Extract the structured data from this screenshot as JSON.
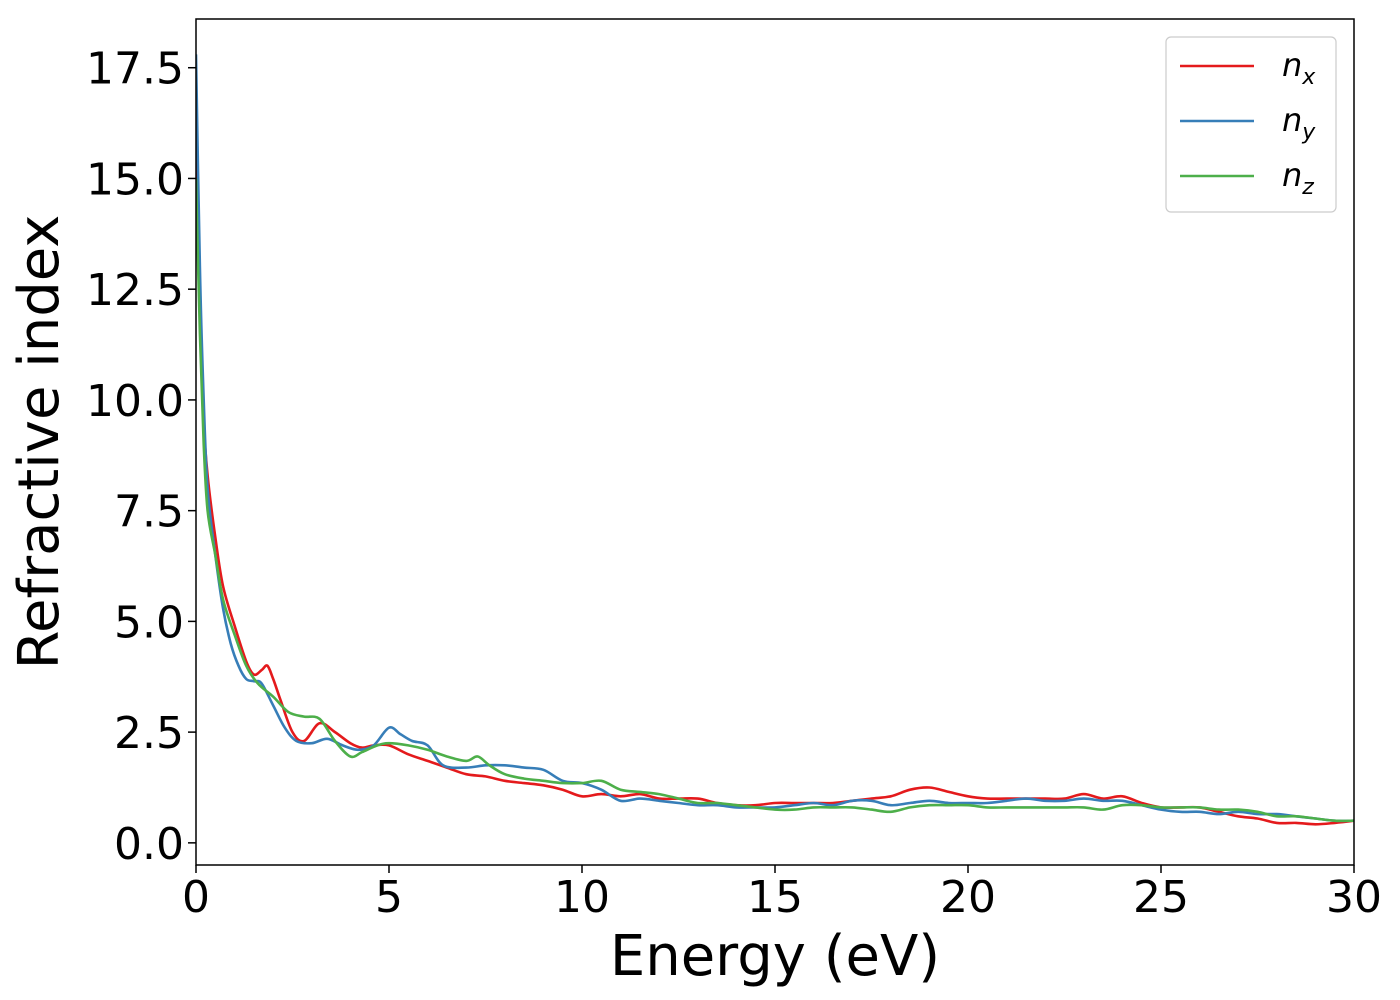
{
  "chart_data": {
    "type": "line",
    "title": "",
    "xlabel": "Energy (eV)",
    "ylabel": "Refractive index",
    "xlim": [
      0,
      30
    ],
    "ylim": [
      -0.5,
      18.6
    ],
    "xticks": [
      0,
      5,
      10,
      15,
      20,
      25,
      30
    ],
    "xtick_labels": [
      "0",
      "5",
      "10",
      "15",
      "20",
      "25",
      "30"
    ],
    "yticks": [
      0.0,
      2.5,
      5.0,
      7.5,
      10.0,
      12.5,
      15.0,
      17.5
    ],
    "ytick_labels": [
      "0.0",
      "2.5",
      "5.0",
      "7.5",
      "10.0",
      "12.5",
      "15.0",
      "17.5"
    ],
    "grid": false,
    "legend_position": "top-right",
    "series": [
      {
        "name": "n_x",
        "label_base": "n",
        "label_sub": "x",
        "color": "#e41a1c",
        "x": [
          0,
          0.1,
          0.2,
          0.3,
          0.5,
          0.7,
          1.0,
          1.3,
          1.5,
          1.7,
          1.85,
          2.0,
          2.2,
          2.5,
          2.8,
          3.2,
          3.6,
          4.0,
          4.3,
          4.6,
          5.0,
          5.5,
          6.0,
          6.5,
          7.0,
          7.5,
          8.0,
          8.5,
          9.0,
          9.5,
          10.0,
          10.5,
          11.0,
          11.5,
          12.0,
          12.5,
          13.0,
          13.5,
          14.0,
          14.5,
          15.0,
          15.5,
          16.0,
          16.5,
          17.0,
          17.5,
          18.0,
          18.5,
          19.0,
          19.5,
          20.0,
          20.5,
          21.0,
          21.5,
          22.0,
          22.5,
          23.0,
          23.5,
          24.0,
          24.5,
          25.0,
          25.5,
          26.0,
          26.5,
          27.0,
          27.5,
          28.0,
          28.5,
          29.0,
          29.5,
          30.0
        ],
        "y": [
          15.5,
          12.0,
          9.5,
          8.3,
          6.9,
          5.8,
          4.9,
          4.1,
          3.8,
          3.9,
          4.0,
          3.7,
          3.2,
          2.5,
          2.3,
          2.7,
          2.5,
          2.25,
          2.15,
          2.2,
          2.2,
          2.0,
          1.85,
          1.7,
          1.55,
          1.5,
          1.4,
          1.35,
          1.3,
          1.2,
          1.05,
          1.1,
          1.05,
          1.1,
          1.0,
          1.0,
          1.0,
          0.9,
          0.85,
          0.85,
          0.9,
          0.9,
          0.9,
          0.9,
          0.95,
          1.0,
          1.05,
          1.2,
          1.25,
          1.15,
          1.05,
          1.0,
          1.0,
          1.0,
          1.0,
          1.0,
          1.1,
          1.0,
          1.05,
          0.9,
          0.8,
          0.8,
          0.8,
          0.7,
          0.6,
          0.55,
          0.45,
          0.45,
          0.42,
          0.45,
          0.5
        ]
      },
      {
        "name": "n_y",
        "label_base": "n",
        "label_sub": "y",
        "color": "#377eb8",
        "x": [
          0,
          0.1,
          0.2,
          0.3,
          0.5,
          0.7,
          0.9,
          1.1,
          1.3,
          1.5,
          1.7,
          2.0,
          2.3,
          2.6,
          3.0,
          3.4,
          3.8,
          4.2,
          4.6,
          5.0,
          5.3,
          5.6,
          6.0,
          6.4,
          7.0,
          7.5,
          8.0,
          8.5,
          9.0,
          9.5,
          10.0,
          10.5,
          11.0,
          11.5,
          12.0,
          12.5,
          13.0,
          13.5,
          14.0,
          14.5,
          15.0,
          15.5,
          16.0,
          16.5,
          17.0,
          17.5,
          18.0,
          18.5,
          19.0,
          19.5,
          20.0,
          20.5,
          21.0,
          21.5,
          22.0,
          22.5,
          23.0,
          23.5,
          24.0,
          24.5,
          25.0,
          25.5,
          26.0,
          26.5,
          27.0,
          27.5,
          28.0,
          28.5,
          29.0,
          29.5,
          30.0
        ],
        "y": [
          17.8,
          13.0,
          10.0,
          8.0,
          6.5,
          5.3,
          4.5,
          4.0,
          3.7,
          3.65,
          3.6,
          3.1,
          2.6,
          2.3,
          2.25,
          2.35,
          2.2,
          2.1,
          2.2,
          2.6,
          2.45,
          2.3,
          2.2,
          1.75,
          1.7,
          1.75,
          1.75,
          1.7,
          1.65,
          1.4,
          1.35,
          1.2,
          0.95,
          1.0,
          0.95,
          0.9,
          0.85,
          0.85,
          0.8,
          0.8,
          0.8,
          0.85,
          0.9,
          0.85,
          0.95,
          0.95,
          0.85,
          0.9,
          0.95,
          0.9,
          0.9,
          0.9,
          0.95,
          1.0,
          0.95,
          0.95,
          1.0,
          0.95,
          0.95,
          0.85,
          0.75,
          0.7,
          0.7,
          0.65,
          0.7,
          0.65,
          0.65,
          0.6,
          0.55,
          0.5,
          0.5
        ]
      },
      {
        "name": "n_z",
        "label_base": "n",
        "label_sub": "z",
        "color": "#4daf4a",
        "x": [
          0,
          0.1,
          0.2,
          0.3,
          0.5,
          0.7,
          1.0,
          1.3,
          1.6,
          2.0,
          2.4,
          2.8,
          3.2,
          3.6,
          4.0,
          4.3,
          4.7,
          5.0,
          5.5,
          6.0,
          6.5,
          7.0,
          7.3,
          7.6,
          8.0,
          8.5,
          9.0,
          9.5,
          10.0,
          10.5,
          11.0,
          11.5,
          12.0,
          12.5,
          13.0,
          13.5,
          14.0,
          14.5,
          15.0,
          15.5,
          16.0,
          16.5,
          17.0,
          17.5,
          18.0,
          18.5,
          19.0,
          19.5,
          20.0,
          20.5,
          21.0,
          21.5,
          22.0,
          22.5,
          23.0,
          23.5,
          24.0,
          24.5,
          25.0,
          25.5,
          26.0,
          26.5,
          27.0,
          27.5,
          28.0,
          28.5,
          29.0,
          29.5,
          30.0
        ],
        "y": [
          15.0,
          11.5,
          9.0,
          7.5,
          6.5,
          5.5,
          4.7,
          4.0,
          3.6,
          3.3,
          2.95,
          2.85,
          2.8,
          2.3,
          1.95,
          2.05,
          2.2,
          2.25,
          2.2,
          2.1,
          1.95,
          1.85,
          1.95,
          1.75,
          1.55,
          1.45,
          1.4,
          1.35,
          1.35,
          1.4,
          1.2,
          1.15,
          1.1,
          1.0,
          0.9,
          0.9,
          0.85,
          0.8,
          0.75,
          0.75,
          0.8,
          0.8,
          0.8,
          0.75,
          0.7,
          0.8,
          0.85,
          0.85,
          0.85,
          0.8,
          0.8,
          0.8,
          0.8,
          0.8,
          0.8,
          0.75,
          0.85,
          0.85,
          0.8,
          0.8,
          0.8,
          0.75,
          0.75,
          0.7,
          0.6,
          0.6,
          0.55,
          0.5,
          0.5
        ]
      }
    ]
  }
}
